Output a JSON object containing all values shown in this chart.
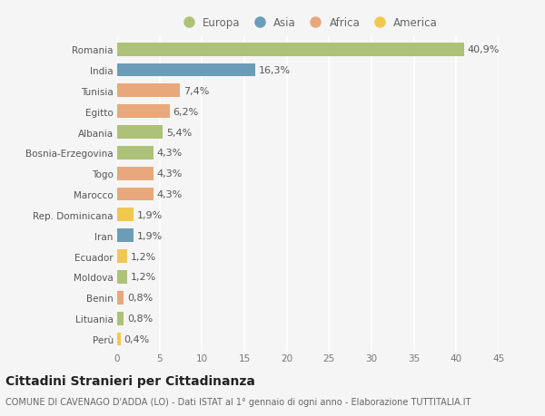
{
  "countries": [
    "Romania",
    "India",
    "Tunisia",
    "Egitto",
    "Albania",
    "Bosnia-Erzegovina",
    "Togo",
    "Marocco",
    "Rep. Dominicana",
    "Iran",
    "Ecuador",
    "Moldova",
    "Benin",
    "Lituania",
    "Perù"
  ],
  "values": [
    40.9,
    16.3,
    7.4,
    6.2,
    5.4,
    4.3,
    4.3,
    4.3,
    1.9,
    1.9,
    1.2,
    1.2,
    0.8,
    0.8,
    0.4
  ],
  "labels": [
    "40,9%",
    "16,3%",
    "7,4%",
    "6,2%",
    "5,4%",
    "4,3%",
    "4,3%",
    "4,3%",
    "1,9%",
    "1,9%",
    "1,2%",
    "1,2%",
    "0,8%",
    "0,8%",
    "0,4%"
  ],
  "continents": [
    "Europa",
    "Asia",
    "Africa",
    "Africa",
    "Europa",
    "Europa",
    "Africa",
    "Africa",
    "America",
    "Asia",
    "America",
    "Europa",
    "Africa",
    "Europa",
    "America"
  ],
  "continent_colors": {
    "Europa": "#adc178",
    "Asia": "#6b9db8",
    "Africa": "#e8a87c",
    "America": "#f0c850"
  },
  "legend_order": [
    "Europa",
    "Asia",
    "Africa",
    "America"
  ],
  "title": "Cittadini Stranieri per Cittadinanza",
  "subtitle": "COMUNE DI CAVENAGO D'ADDA (LO) - Dati ISTAT al 1° gennaio di ogni anno - Elaborazione TUTTITALIA.IT",
  "xlim": [
    0,
    45
  ],
  "xticks": [
    0,
    5,
    10,
    15,
    20,
    25,
    30,
    35,
    40,
    45
  ],
  "bg_color": "#f5f5f5",
  "bar_height": 0.65,
  "label_fontsize": 8,
  "title_fontsize": 10,
  "subtitle_fontsize": 7,
  "tick_fontsize": 7.5,
  "legend_fontsize": 8.5
}
